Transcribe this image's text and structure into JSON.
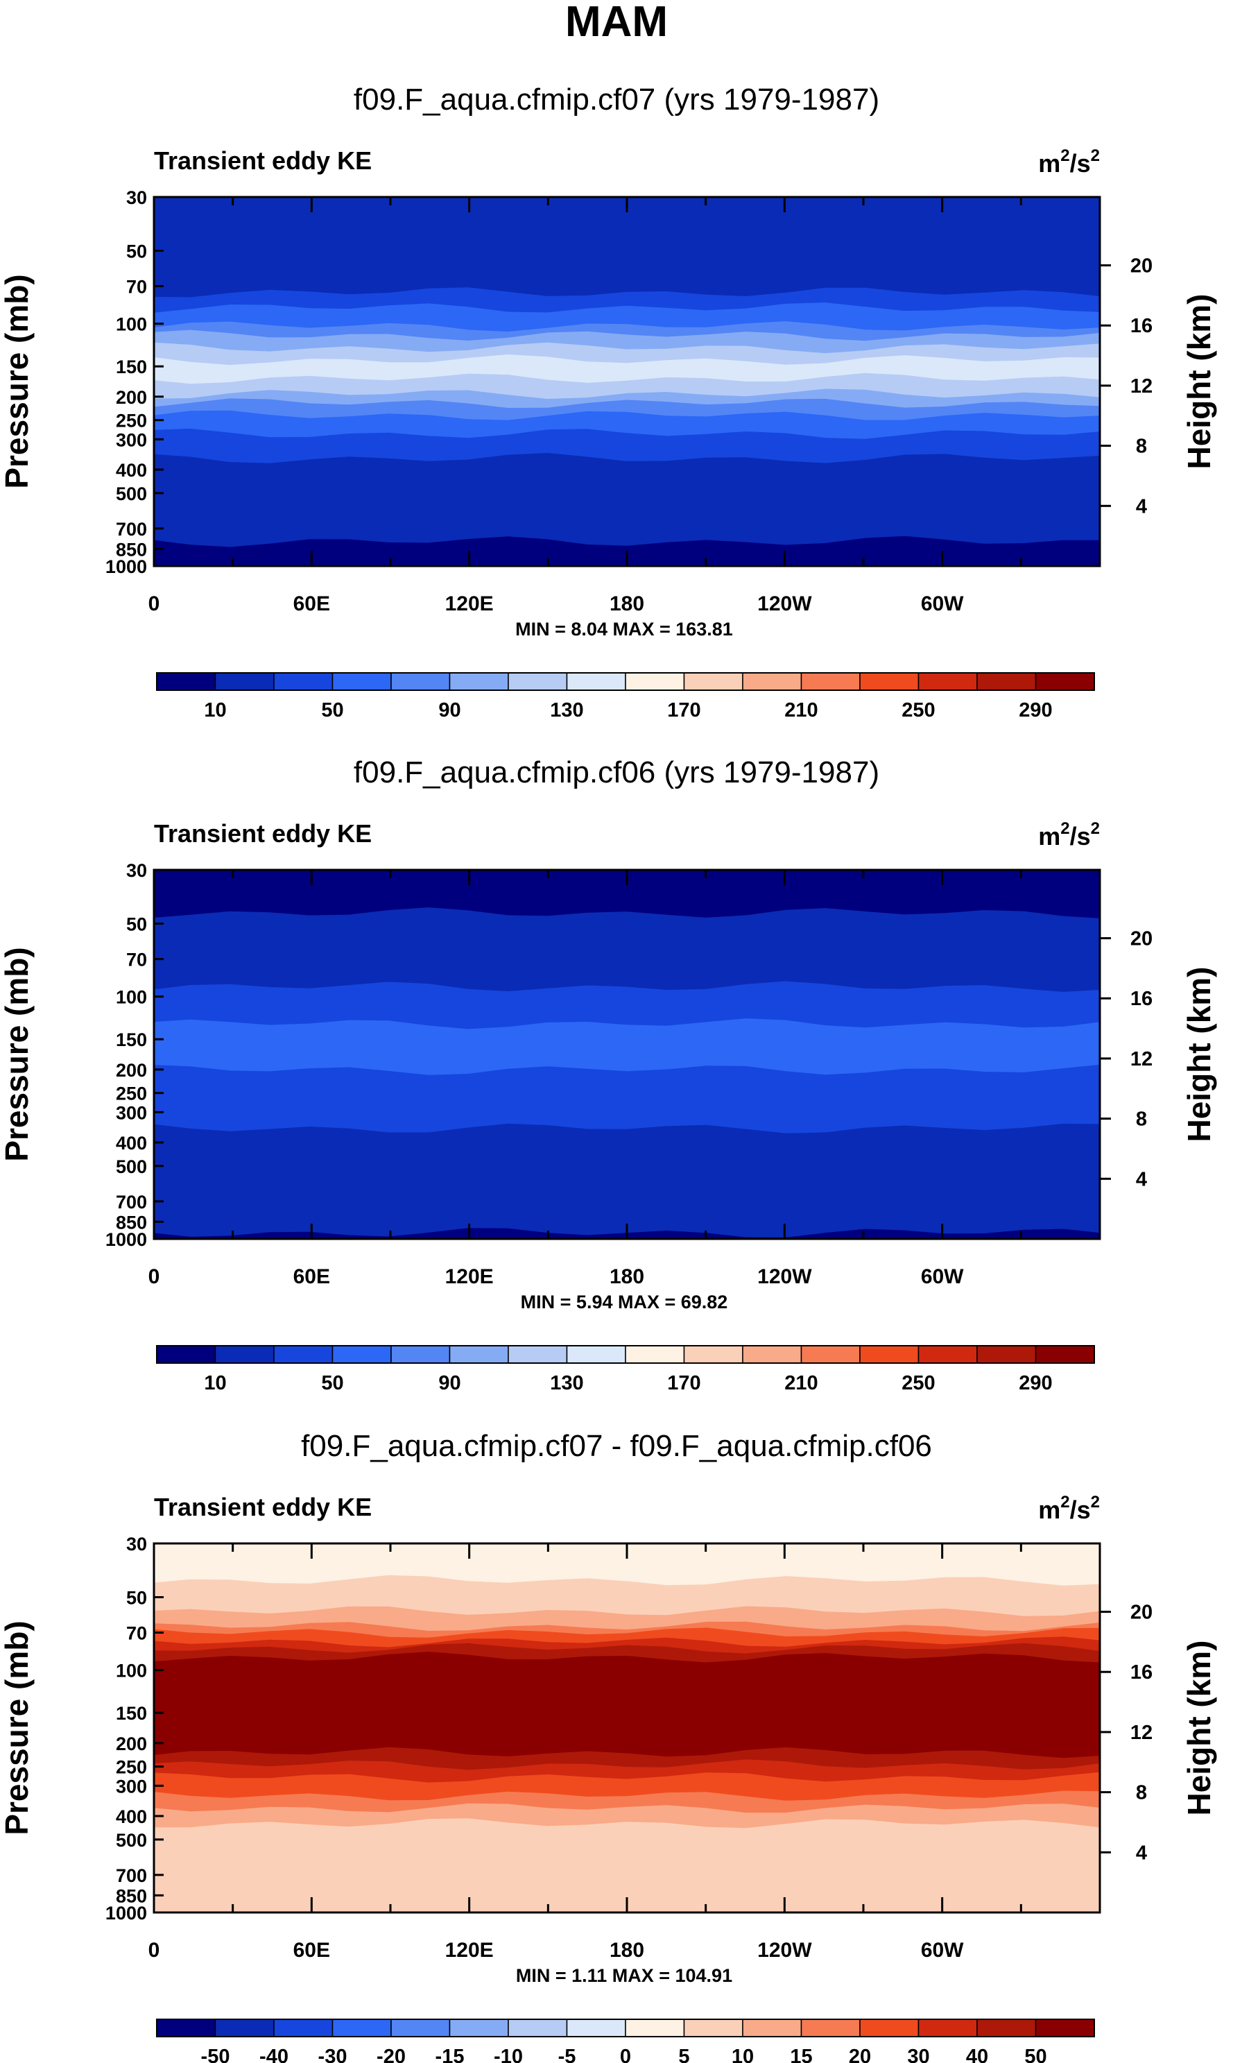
{
  "figure_title": "MAM",
  "chart_data": [
    {
      "type": "heatmap",
      "title": "f09.F_aqua.cfmip.cf07 (yrs 1979-1987)",
      "left_label": "Transient eddy KE",
      "units": "m2/s2",
      "units_base": "m",
      "units_mid": "/s",
      "units_exp": "2",
      "ylabel": "Pressure (mb)",
      "y2label": "Height (km)",
      "x_ticks": [
        "0",
        "60E",
        "120E",
        "180",
        "120W",
        "60W"
      ],
      "y_ticks": [
        "30",
        "50",
        "70",
        "100",
        "150",
        "200",
        "250",
        "300",
        "400",
        "500",
        "700",
        "850",
        "1000"
      ],
      "y2_ticks": [
        "20",
        "16",
        "12",
        "8",
        "4"
      ],
      "ylim": [
        1000,
        30
      ],
      "log_pressure_axis": true,
      "stats": "MIN =   8.04   MAX = 163.81",
      "colorbar_labels": [
        "10",
        "50",
        "90",
        "130",
        "170",
        "210",
        "250",
        "290"
      ],
      "vertical_profile": [
        {
          "pressure": 30,
          "value": 10
        },
        {
          "pressure": 50,
          "value": 12
        },
        {
          "pressure": 70,
          "value": 25
        },
        {
          "pressure": 100,
          "value": 70
        },
        {
          "pressure": 130,
          "value": 120
        },
        {
          "pressure": 150,
          "value": 145
        },
        {
          "pressure": 180,
          "value": 120
        },
        {
          "pressure": 220,
          "value": 80
        },
        {
          "pressure": 280,
          "value": 50
        },
        {
          "pressure": 350,
          "value": 30
        },
        {
          "pressure": 420,
          "value": 15
        },
        {
          "pressure": 1000,
          "value": 8
        }
      ],
      "palette": "blue_red"
    },
    {
      "type": "heatmap",
      "title": "f09.F_aqua.cfmip.cf06 (yrs 1979-1987)",
      "left_label": "Transient eddy KE",
      "units": "m2/s2",
      "units_base": "m",
      "units_mid": "/s",
      "units_exp": "2",
      "ylabel": "Pressure (mb)",
      "y2label": "Height (km)",
      "x_ticks": [
        "0",
        "60E",
        "120E",
        "180",
        "120W",
        "60W"
      ],
      "y_ticks": [
        "30",
        "50",
        "70",
        "100",
        "150",
        "200",
        "250",
        "300",
        "400",
        "500",
        "700",
        "850",
        "1000"
      ],
      "y2_ticks": [
        "20",
        "16",
        "12",
        "8",
        "4"
      ],
      "ylim": [
        1000,
        30
      ],
      "log_pressure_axis": true,
      "stats": "MIN =   5.94   MAX = 69.82",
      "colorbar_labels": [
        "10",
        "50",
        "90",
        "130",
        "170",
        "210",
        "250",
        "290"
      ],
      "vertical_profile": [
        {
          "pressure": 30,
          "value": 8
        },
        {
          "pressure": 65,
          "value": 12
        },
        {
          "pressure": 90,
          "value": 30
        },
        {
          "pressure": 150,
          "value": 60
        },
        {
          "pressure": 200,
          "value": 50
        },
        {
          "pressure": 260,
          "value": 32
        },
        {
          "pressure": 700,
          "value": 25
        },
        {
          "pressure": 850,
          "value": 15
        },
        {
          "pressure": 1000,
          "value": 6
        }
      ],
      "palette": "blue_red"
    },
    {
      "type": "heatmap",
      "title": "f09.F_aqua.cfmip.cf07 - f09.F_aqua.cfmip.cf06",
      "left_label": "Transient eddy KE",
      "units": "m2/s2",
      "units_base": "m",
      "units_mid": "/s",
      "units_exp": "2",
      "ylabel": "Pressure (mb)",
      "y2label": "Height (km)",
      "x_ticks": [
        "0",
        "60E",
        "120E",
        "180",
        "120W",
        "60W"
      ],
      "y_ticks": [
        "30",
        "50",
        "70",
        "100",
        "150",
        "200",
        "250",
        "300",
        "400",
        "500",
        "700",
        "850",
        "1000"
      ],
      "y2_ticks": [
        "20",
        "16",
        "12",
        "8",
        "4"
      ],
      "ylim": [
        1000,
        30
      ],
      "log_pressure_axis": true,
      "stats": "MIN =   1.11   MAX = 104.91",
      "colorbar_labels": [
        "-50",
        "-40",
        "-30",
        "-20",
        "-15",
        "-10",
        "-5",
        "0",
        "5",
        "10",
        "15",
        "20",
        "30",
        "40",
        "50"
      ],
      "vertical_profile": [
        {
          "pressure": 30,
          "value": 3
        },
        {
          "pressure": 50,
          "value": 6
        },
        {
          "pressure": 65,
          "value": 15
        },
        {
          "pressure": 75,
          "value": 30
        },
        {
          "pressure": 90,
          "value": 55
        },
        {
          "pressure": 200,
          "value": 60
        },
        {
          "pressure": 250,
          "value": 35
        },
        {
          "pressure": 320,
          "value": 20
        },
        {
          "pressure": 400,
          "value": 12
        },
        {
          "pressure": 450,
          "value": 8
        },
        {
          "pressure": 1000,
          "value": 6
        }
      ],
      "palette": "diff"
    }
  ],
  "colors": {
    "blue_red": [
      "#00007f",
      "#0a2bb5",
      "#1646de",
      "#2c67f6",
      "#5385f5",
      "#86abf5",
      "#b6ccf5",
      "#dae8fa",
      "#fdf2e4",
      "#fbd0b8",
      "#f9aa89",
      "#f67b52",
      "#f04b1e",
      "#d02910",
      "#ae1808",
      "#8a0000"
    ],
    "diff": [
      "#00007f",
      "#0a2bb5",
      "#1646de",
      "#2c67f6",
      "#5385f5",
      "#86abf5",
      "#b6ccf5",
      "#dae8fa",
      "#fdf2e4",
      "#fbd0b8",
      "#f9aa89",
      "#f67b52",
      "#f04b1e",
      "#d02910",
      "#ae1808",
      "#8a0000"
    ]
  }
}
